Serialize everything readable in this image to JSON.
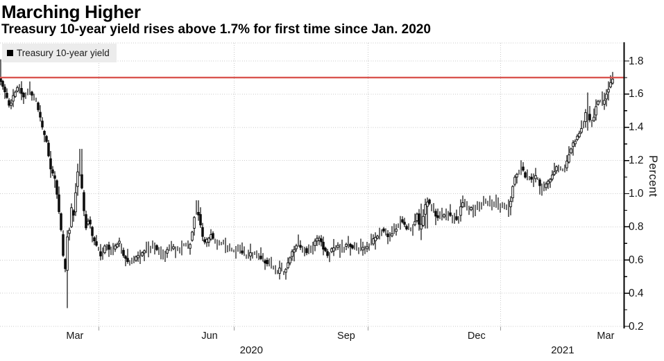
{
  "chart_data": {
    "type": "hlc-bar",
    "title": "Marching Higher",
    "subtitle": "Treasury 10-year yield rises above 1.7% for first time since Jan. 2020",
    "series": [
      {
        "name": "Treasury 10-year yield",
        "color": "#000000"
      }
    ],
    "ylabel": "Percent",
    "ylim": [
      0.2,
      1.9
    ],
    "grid": "dotted",
    "legend_position": "top-left",
    "x_domain": [
      "2020-01-24",
      "2021-03-24"
    ],
    "y_ticks": [
      {
        "v": 0.2,
        "label": "0.2"
      },
      {
        "v": 0.4,
        "label": "0.4"
      },
      {
        "v": 0.6,
        "label": "0.6"
      },
      {
        "v": 0.8,
        "label": "0.8"
      },
      {
        "v": 1.0,
        "label": "1.0"
      },
      {
        "v": 1.2,
        "label": "1.2"
      },
      {
        "v": 1.4,
        "label": "1.4"
      },
      {
        "v": 1.6,
        "label": "1.6"
      },
      {
        "v": 1.8,
        "label": "1.8"
      }
    ],
    "y_minor_ticks": [
      0.3,
      0.5,
      0.7,
      0.9,
      1.1,
      1.3,
      1.5,
      1.7
    ],
    "x_ticks": [
      {
        "t": 0.12,
        "label": "Mar"
      },
      {
        "t": 0.336,
        "label": "Jun"
      },
      {
        "t": 0.555,
        "label": "Sep"
      },
      {
        "t": 0.764,
        "label": "Dec"
      },
      {
        "t": 0.971,
        "label": "Mar"
      }
    ],
    "year_labels": [
      {
        "t": 0.403,
        "label": "2020"
      },
      {
        "t": 0.902,
        "label": "2021"
      }
    ],
    "x_gridlines_t": [
      0.158,
      0.375,
      0.59,
      0.802
    ],
    "reference_line": {
      "value": 1.7,
      "color": "#d9534f"
    },
    "keyframes_format": "[t, yield_pct, low_override, high_override]; t = linear time fraction across x_domain",
    "keyframes": [
      [
        0.0,
        1.7,
        null,
        1.81
      ],
      [
        0.0089,
        1.62
      ],
      [
        0.0167,
        1.53
      ],
      [
        0.0245,
        1.6
      ],
      [
        0.0311,
        1.64
      ],
      [
        0.04,
        1.59
      ],
      [
        0.0489,
        1.62
      ],
      [
        0.059,
        1.56
      ],
      [
        0.0656,
        1.46
      ],
      [
        0.0701,
        1.38
      ],
      [
        0.0756,
        1.33
      ],
      [
        0.0823,
        1.15
      ],
      [
        0.089,
        1.1
      ],
      [
        0.0923,
        1.02
      ],
      [
        0.099,
        0.8
      ],
      [
        0.1034,
        0.6
      ],
      [
        0.1068,
        0.54,
        0.31,
        null
      ],
      [
        0.109,
        0.74
      ],
      [
        0.1135,
        0.8
      ],
      [
        0.1157,
        0.92
      ],
      [
        0.119,
        0.85
      ],
      [
        0.1224,
        1.0
      ],
      [
        0.1257,
        1.12
      ],
      [
        0.129,
        1.15,
        null,
        1.27
      ],
      [
        0.1324,
        1.05
      ],
      [
        0.1357,
        0.92
      ],
      [
        0.139,
        0.79
      ],
      [
        0.1424,
        0.84
      ],
      [
        0.1457,
        0.83
      ],
      [
        0.1513,
        0.72
      ],
      [
        0.158,
        0.67
      ],
      [
        0.1646,
        0.62
      ],
      [
        0.1713,
        0.7
      ],
      [
        0.178,
        0.64
      ],
      [
        0.1846,
        0.66
      ],
      [
        0.1913,
        0.72
      ],
      [
        0.2002,
        0.63
      ],
      [
        0.208,
        0.58
      ],
      [
        0.218,
        0.61
      ],
      [
        0.2269,
        0.63
      ],
      [
        0.238,
        0.67
      ],
      [
        0.2481,
        0.69
      ],
      [
        0.2558,
        0.66
      ],
      [
        0.2625,
        0.63
      ],
      [
        0.2714,
        0.67
      ],
      [
        0.2792,
        0.68
      ],
      [
        0.287,
        0.66
      ],
      [
        0.2959,
        0.7
      ],
      [
        0.3048,
        0.67
      ],
      [
        0.3115,
        0.82
      ],
      [
        0.3148,
        0.9,
        null,
        0.96
      ],
      [
        0.3193,
        0.89
      ],
      [
        0.3237,
        0.8
      ],
      [
        0.3281,
        0.7
      ],
      [
        0.3348,
        0.72
      ],
      [
        0.3404,
        0.75
      ],
      [
        0.3482,
        0.7
      ],
      [
        0.3571,
        0.71
      ],
      [
        0.366,
        0.68
      ],
      [
        0.3737,
        0.66
      ],
      [
        0.3838,
        0.68
      ],
      [
        0.3949,
        0.62
      ],
      [
        0.406,
        0.64
      ],
      [
        0.4149,
        0.62
      ],
      [
        0.4238,
        0.6
      ],
      [
        0.4338,
        0.57
      ],
      [
        0.4416,
        0.55
      ],
      [
        0.4472,
        0.53
      ],
      [
        0.4516,
        0.55
      ],
      [
        0.4561,
        0.52
      ],
      [
        0.4627,
        0.57
      ],
      [
        0.4694,
        0.64
      ],
      [
        0.4772,
        0.7
      ],
      [
        0.485,
        0.68
      ],
      [
        0.4939,
        0.65
      ],
      [
        0.5028,
        0.69
      ],
      [
        0.5128,
        0.74
      ],
      [
        0.5206,
        0.67
      ],
      [
        0.5273,
        0.63
      ],
      [
        0.535,
        0.67
      ],
      [
        0.5439,
        0.68
      ],
      [
        0.5517,
        0.67
      ],
      [
        0.5584,
        0.69
      ],
      [
        0.5673,
        0.68
      ],
      [
        0.5773,
        0.66
      ],
      [
        0.5862,
        0.67
      ],
      [
        0.5962,
        0.7
      ],
      [
        0.6051,
        0.74
      ],
      [
        0.6129,
        0.78
      ],
      [
        0.6196,
        0.76
      ],
      [
        0.6263,
        0.74
      ],
      [
        0.6341,
        0.78
      ],
      [
        0.6407,
        0.82
      ],
      [
        0.6452,
        0.85
      ],
      [
        0.6507,
        0.81
      ],
      [
        0.6574,
        0.78
      ],
      [
        0.6641,
        0.82
      ],
      [
        0.6719,
        0.88
      ],
      [
        0.6741,
        0.78,
        0.72,
        0.94
      ],
      [
        0.6785,
        0.82
      ],
      [
        0.6819,
        0.92,
        0.79,
        0.97
      ],
      [
        0.6885,
        0.96
      ],
      [
        0.6952,
        0.89
      ],
      [
        0.7019,
        0.87
      ],
      [
        0.7097,
        0.85
      ],
      [
        0.7186,
        0.88
      ],
      [
        0.7275,
        0.86
      ],
      [
        0.7353,
        0.84
      ],
      [
        0.7408,
        0.92
      ],
      [
        0.7453,
        0.95
      ],
      [
        0.7531,
        0.91
      ],
      [
        0.762,
        0.9
      ],
      [
        0.7698,
        0.93
      ],
      [
        0.7786,
        0.95
      ],
      [
        0.7875,
        0.93
      ],
      [
        0.7964,
        0.94
      ],
      [
        0.8042,
        0.93
      ],
      [
        0.812,
        0.92
      ],
      [
        0.8187,
        0.91
      ],
      [
        0.8231,
        1.04
      ],
      [
        0.8276,
        1.1
      ],
      [
        0.832,
        1.13
      ],
      [
        0.8376,
        1.17,
        null,
        1.19
      ],
      [
        0.8443,
        1.1
      ],
      [
        0.8521,
        1.09
      ],
      [
        0.861,
        1.1
      ],
      [
        0.8676,
        1.05
      ],
      [
        0.8732,
        1.02
      ],
      [
        0.8799,
        1.07
      ],
      [
        0.8843,
        1.08
      ],
      [
        0.8899,
        1.13
      ],
      [
        0.8943,
        1.17
      ],
      [
        0.8999,
        1.15
      ],
      [
        0.9055,
        1.13
      ],
      [
        0.9121,
        1.21
      ],
      [
        0.9199,
        1.3
      ],
      [
        0.9266,
        1.34
      ],
      [
        0.9321,
        1.38
      ],
      [
        0.9377,
        1.43
      ],
      [
        0.941,
        1.5,
        1.38,
        1.61
      ],
      [
        0.9455,
        1.46
      ],
      [
        0.9499,
        1.42
      ],
      [
        0.9544,
        1.48
      ],
      [
        0.9599,
        1.57
      ],
      [
        0.9644,
        1.55
      ],
      [
        0.9688,
        1.54
      ],
      [
        0.9733,
        1.6
      ],
      [
        0.9766,
        1.62
      ],
      [
        0.98,
        1.66
      ],
      [
        0.9833,
        1.7,
        null,
        1.73
      ]
    ]
  },
  "colors": {
    "background": "#ffffff",
    "bars": "#000000",
    "grid": "#c9c9c9",
    "axis": "#000000",
    "reference_line": "#d9534f",
    "legend_bg": "#ececec",
    "text": "#141414"
  }
}
